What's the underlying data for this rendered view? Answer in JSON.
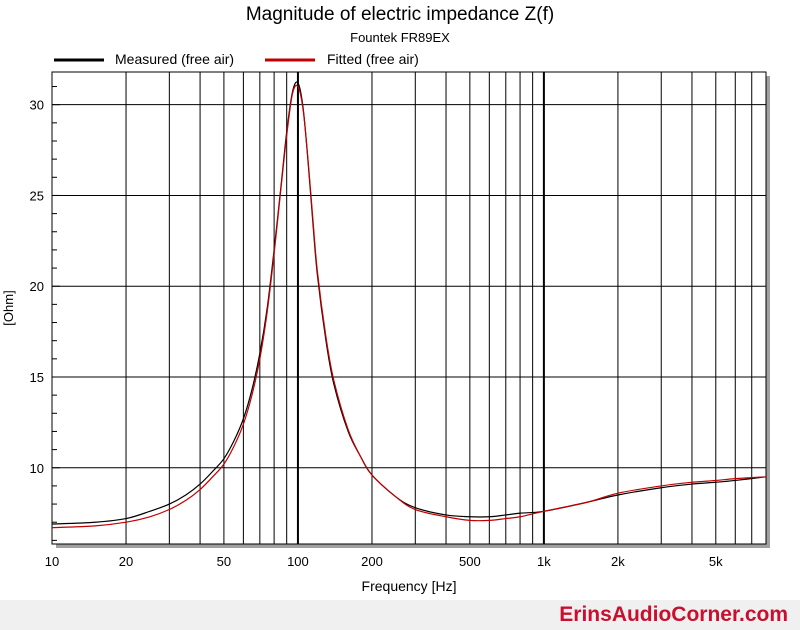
{
  "watermark": "ErinsAudioCorner.com",
  "colors": {
    "measured": "#000000",
    "fitted": "#c00000",
    "brand": "#c8102e"
  },
  "chart_data": {
    "type": "line",
    "title": "Magnitude of electric impedance Z(f)",
    "subtitle": "Fountek FR89EX",
    "xlabel": "Frequency [Hz]",
    "ylabel": "[Ohm]",
    "xscale": "log",
    "xlim": [
      10,
      8000
    ],
    "ylim": [
      5.8,
      31.8
    ],
    "grid": true,
    "legend_position": "top",
    "xticks": [
      {
        "value": 10,
        "label": "10"
      },
      {
        "value": 20,
        "label": "20"
      },
      {
        "value": 50,
        "label": "50"
      },
      {
        "value": 100,
        "label": "100"
      },
      {
        "value": 200,
        "label": "200"
      },
      {
        "value": 500,
        "label": "500"
      },
      {
        "value": 1000,
        "label": "1k"
      },
      {
        "value": 2000,
        "label": "2k"
      },
      {
        "value": 5000,
        "label": "5k"
      }
    ],
    "yticks": [
      {
        "value": 10,
        "label": "10"
      },
      {
        "value": 15,
        "label": "15"
      },
      {
        "value": 20,
        "label": "20"
      },
      {
        "value": 25,
        "label": "25"
      },
      {
        "value": 30,
        "label": "30"
      }
    ],
    "series": [
      {
        "name": "Measured (free air)",
        "color": "#000000",
        "x": [
          10,
          15,
          20,
          25,
          30,
          35,
          40,
          45,
          50,
          55,
          60,
          65,
          70,
          75,
          80,
          85,
          90,
          95,
          100,
          105,
          110,
          115,
          120,
          130,
          140,
          160,
          180,
          200,
          250,
          300,
          400,
          500,
          600,
          700,
          800,
          1000,
          1500,
          2000,
          3000,
          4000,
          5000,
          6000,
          8000
        ],
        "y": [
          6.9,
          7.0,
          7.2,
          7.6,
          8.0,
          8.5,
          9.1,
          9.8,
          10.5,
          11.5,
          12.7,
          14.3,
          16.3,
          18.8,
          22.0,
          25.3,
          28.5,
          30.7,
          31.2,
          29.8,
          26.8,
          23.5,
          20.6,
          17.0,
          14.6,
          12.0,
          10.6,
          9.6,
          8.4,
          7.8,
          7.4,
          7.3,
          7.3,
          7.4,
          7.5,
          7.6,
          8.1,
          8.5,
          8.9,
          9.1,
          9.2,
          9.3,
          9.5
        ]
      },
      {
        "name": "Fitted (free air)",
        "color": "#c00000",
        "x": [
          10,
          15,
          20,
          25,
          30,
          35,
          40,
          45,
          50,
          55,
          60,
          65,
          70,
          75,
          80,
          85,
          90,
          95,
          100,
          105,
          110,
          115,
          120,
          130,
          140,
          160,
          180,
          200,
          250,
          300,
          400,
          500,
          600,
          700,
          800,
          1000,
          1500,
          2000,
          3000,
          4000,
          5000,
          6000,
          8000
        ],
        "y": [
          6.7,
          6.8,
          7.0,
          7.3,
          7.7,
          8.2,
          8.8,
          9.5,
          10.2,
          11.2,
          12.4,
          14.0,
          16.0,
          18.6,
          21.8,
          25.2,
          28.3,
          30.6,
          31.0,
          29.7,
          26.9,
          23.7,
          20.8,
          17.2,
          14.8,
          12.1,
          10.6,
          9.6,
          8.4,
          7.7,
          7.3,
          7.1,
          7.1,
          7.2,
          7.3,
          7.6,
          8.1,
          8.6,
          9.0,
          9.2,
          9.3,
          9.4,
          9.5
        ]
      }
    ]
  }
}
